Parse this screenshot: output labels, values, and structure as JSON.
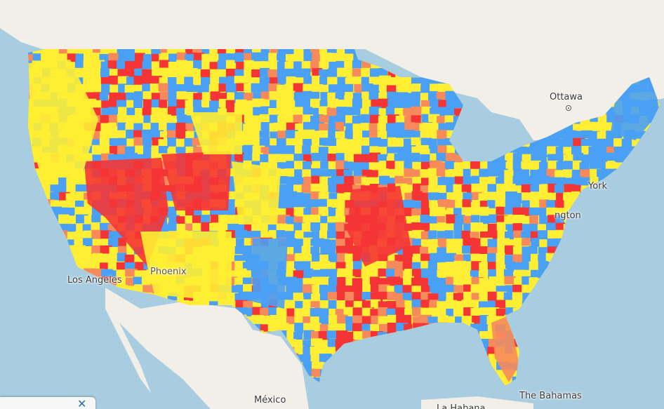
{
  "map": {
    "labels": {
      "ottawa": "Ottawa",
      "york": "York",
      "dc": "ngton",
      "los_angeles": "Los Angeles",
      "mexico": "México",
      "bahamas": "The Bahamas",
      "habana": "La Habana",
      "phoenix": "Phoenix"
    },
    "colors": {
      "water": "#a9cde0",
      "land": "#f2efe9",
      "blue": "#4aa0f5",
      "yellow": "#ffee33",
      "orange": "#f78a5a",
      "red": "#f53535"
    },
    "legend_panel": {
      "close_symbol": "✕"
    }
  }
}
